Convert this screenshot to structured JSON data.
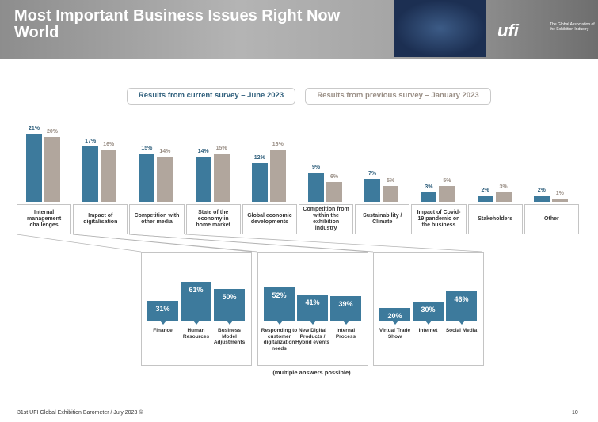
{
  "header": {
    "title": "Most Important Business Issues Right Now World",
    "logo": "ufi",
    "tagline": "The Global Association of the Exhibition Industry"
  },
  "chart_data": [
    {
      "type": "bar",
      "categories": [
        "Internal management challenges",
        "Impact of digitalisation",
        "Competition with other media",
        "State of the economy in home market",
        "Global economic developments",
        "Competition from within the exhibition industry",
        "Sustainability / Climate",
        "Impact of Covid-19 pandemic on the business",
        "Stakeholders",
        "Other"
      ],
      "series": [
        {
          "name": "Results from current survey – June 2023",
          "color": "#3d7a9c",
          "values": [
            21,
            17,
            15,
            14,
            12,
            9,
            7,
            3,
            2,
            2
          ],
          "value_labels": [
            "21%",
            "17%",
            "15%",
            "14%",
            "12%",
            "9%",
            "7%",
            "3%",
            "2%",
            "2%"
          ]
        },
        {
          "name": "Results from previous survey – January 2023",
          "color": "#b1a69d",
          "values": [
            20,
            16,
            14,
            15,
            16,
            6,
            5,
            5,
            3,
            1
          ],
          "value_labels": [
            "20%",
            "16%",
            "14%",
            "15%",
            "16%",
            "6%",
            "5%",
            "5%",
            "3%",
            "1%"
          ]
        }
      ]
    },
    {
      "type": "bar",
      "categories": [
        "Finance",
        "Human Resources",
        "Business Model Adjustments"
      ],
      "values": [
        31,
        61,
        50
      ],
      "value_labels": [
        "31%",
        "61%",
        "50%"
      ],
      "color": "#3d7a9c"
    },
    {
      "type": "bar",
      "categories": [
        "Responding to customer digitalization needs",
        "New Digital Products / Hybrid events",
        "Internal Process"
      ],
      "values": [
        52,
        41,
        39
      ],
      "value_labels": [
        "52%",
        "41%",
        "39%"
      ],
      "color": "#3d7a9c"
    },
    {
      "type": "bar",
      "categories": [
        "Virtual Trade Show",
        "Internet",
        "Social Media"
      ],
      "values": [
        20,
        30,
        46
      ],
      "value_labels": [
        "20%",
        "30%",
        "46%"
      ],
      "color": "#3d7a9c"
    }
  ],
  "note": "(multiple answers possible)",
  "footer": {
    "source": "31st UFI Global Exhibition Barometer / July 2023 ©",
    "page": "10"
  }
}
